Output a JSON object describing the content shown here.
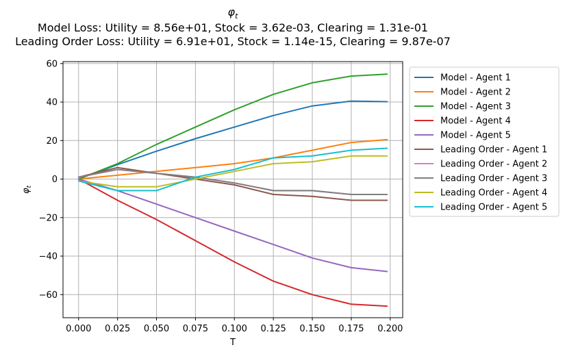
{
  "chart_data": {
    "type": "line",
    "title": "φ",
    "title_sub": "t",
    "subtitle_1": "Model Loss: Utility = 8.56e+01, Stock = 3.62e-03, Clearing = 1.31e-01",
    "subtitle_2": "Leading Order Loss: Utility = 6.91e+01, Stock = 1.14e-15, Clearing = 9.87e-07",
    "xlabel": "T",
    "ylabel": "φ",
    "ylabel_sub": "t",
    "xlim": [
      -0.01,
      0.208
    ],
    "ylim": [
      -72,
      61
    ],
    "x_ticks": [
      0.0,
      0.025,
      0.05,
      0.075,
      0.1,
      0.125,
      0.15,
      0.175,
      0.2
    ],
    "x_tick_labels": [
      "0.000",
      "0.025",
      "0.050",
      "0.075",
      "0.100",
      "0.125",
      "0.150",
      "0.175",
      "0.200"
    ],
    "y_ticks": [
      -60,
      -40,
      -20,
      0,
      20,
      40,
      60
    ],
    "y_tick_labels": [
      "−60",
      "−40",
      "−20",
      "0",
      "20",
      "40",
      "60"
    ],
    "grid": true,
    "legend_position": "outside-right",
    "x": [
      0.0,
      0.025,
      0.05,
      0.075,
      0.1,
      0.125,
      0.15,
      0.175,
      0.198
    ],
    "series": [
      {
        "name": "Model - Agent 1",
        "color": "#1f77b4",
        "values": [
          0,
          7.5,
          14.5,
          21,
          27,
          33,
          38,
          40.5,
          40.2
        ]
      },
      {
        "name": "Model - Agent 2",
        "color": "#ff7f0e",
        "values": [
          0,
          2,
          4,
          6,
          8,
          11,
          15,
          19,
          20.5
        ]
      },
      {
        "name": "Model - Agent 3",
        "color": "#2ca02c",
        "values": [
          0,
          8,
          18,
          27,
          36,
          44,
          50,
          53.5,
          54.5
        ]
      },
      {
        "name": "Model - Agent 4",
        "color": "#d62728",
        "values": [
          0,
          -11,
          -21,
          -32,
          -43,
          -53,
          -60,
          -65,
          -66
        ]
      },
      {
        "name": "Model - Agent 5",
        "color": "#9467bd",
        "values": [
          0,
          -6,
          -13,
          -20,
          -27,
          -34,
          -41,
          -46,
          -48
        ]
      },
      {
        "name": "Leading Order - Agent 1",
        "color": "#8c564b",
        "values": [
          1,
          6,
          3,
          0,
          -3,
          -8,
          -9,
          -11,
          -11
        ]
      },
      {
        "name": "Leading Order - Agent 2",
        "color": "#e377c2",
        "values": [
          1,
          5,
          3,
          1,
          -2,
          -6,
          -6,
          -8,
          -8
        ]
      },
      {
        "name": "Leading Order - Agent 3",
        "color": "#7f7f7f",
        "values": [
          1,
          5,
          3,
          1,
          -2,
          -6,
          -6,
          -8,
          -8
        ]
      },
      {
        "name": "Leading Order - Agent 4",
        "color": "#bcbd22",
        "values": [
          -1,
          -4,
          -4,
          0,
          4,
          8,
          9,
          12,
          12
        ]
      },
      {
        "name": "Leading Order - Agent 5",
        "color": "#17becf",
        "values": [
          -1,
          -6,
          -6,
          1,
          5,
          11,
          12,
          15,
          16
        ]
      }
    ]
  }
}
